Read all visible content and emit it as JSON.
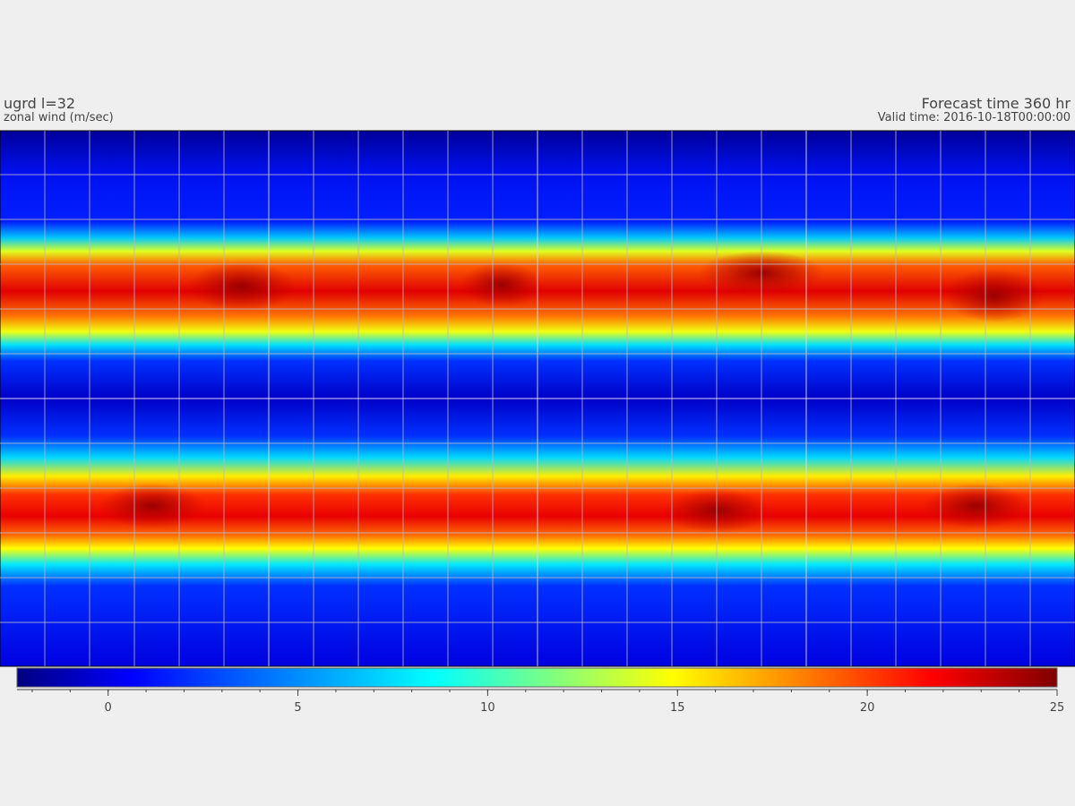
{
  "header": {
    "title": "ugrd l=32",
    "subtitle": "zonal wind (m/sec)",
    "forecast": "Forecast time 360 hr",
    "valid": "Valid time: 2016-10-18T00:00:00"
  },
  "colorbar": {
    "colormap": "jet",
    "lim": [
      -2.4,
      25
    ],
    "ticks": [
      0,
      5,
      10,
      15,
      20,
      25
    ],
    "minor_ticks": [
      -2,
      -1,
      0,
      1,
      2,
      3,
      4,
      5,
      6,
      7,
      8,
      9,
      10,
      11,
      12,
      13,
      14,
      15,
      16,
      17,
      18,
      19,
      20,
      21,
      22,
      23,
      24,
      25
    ]
  }
}
